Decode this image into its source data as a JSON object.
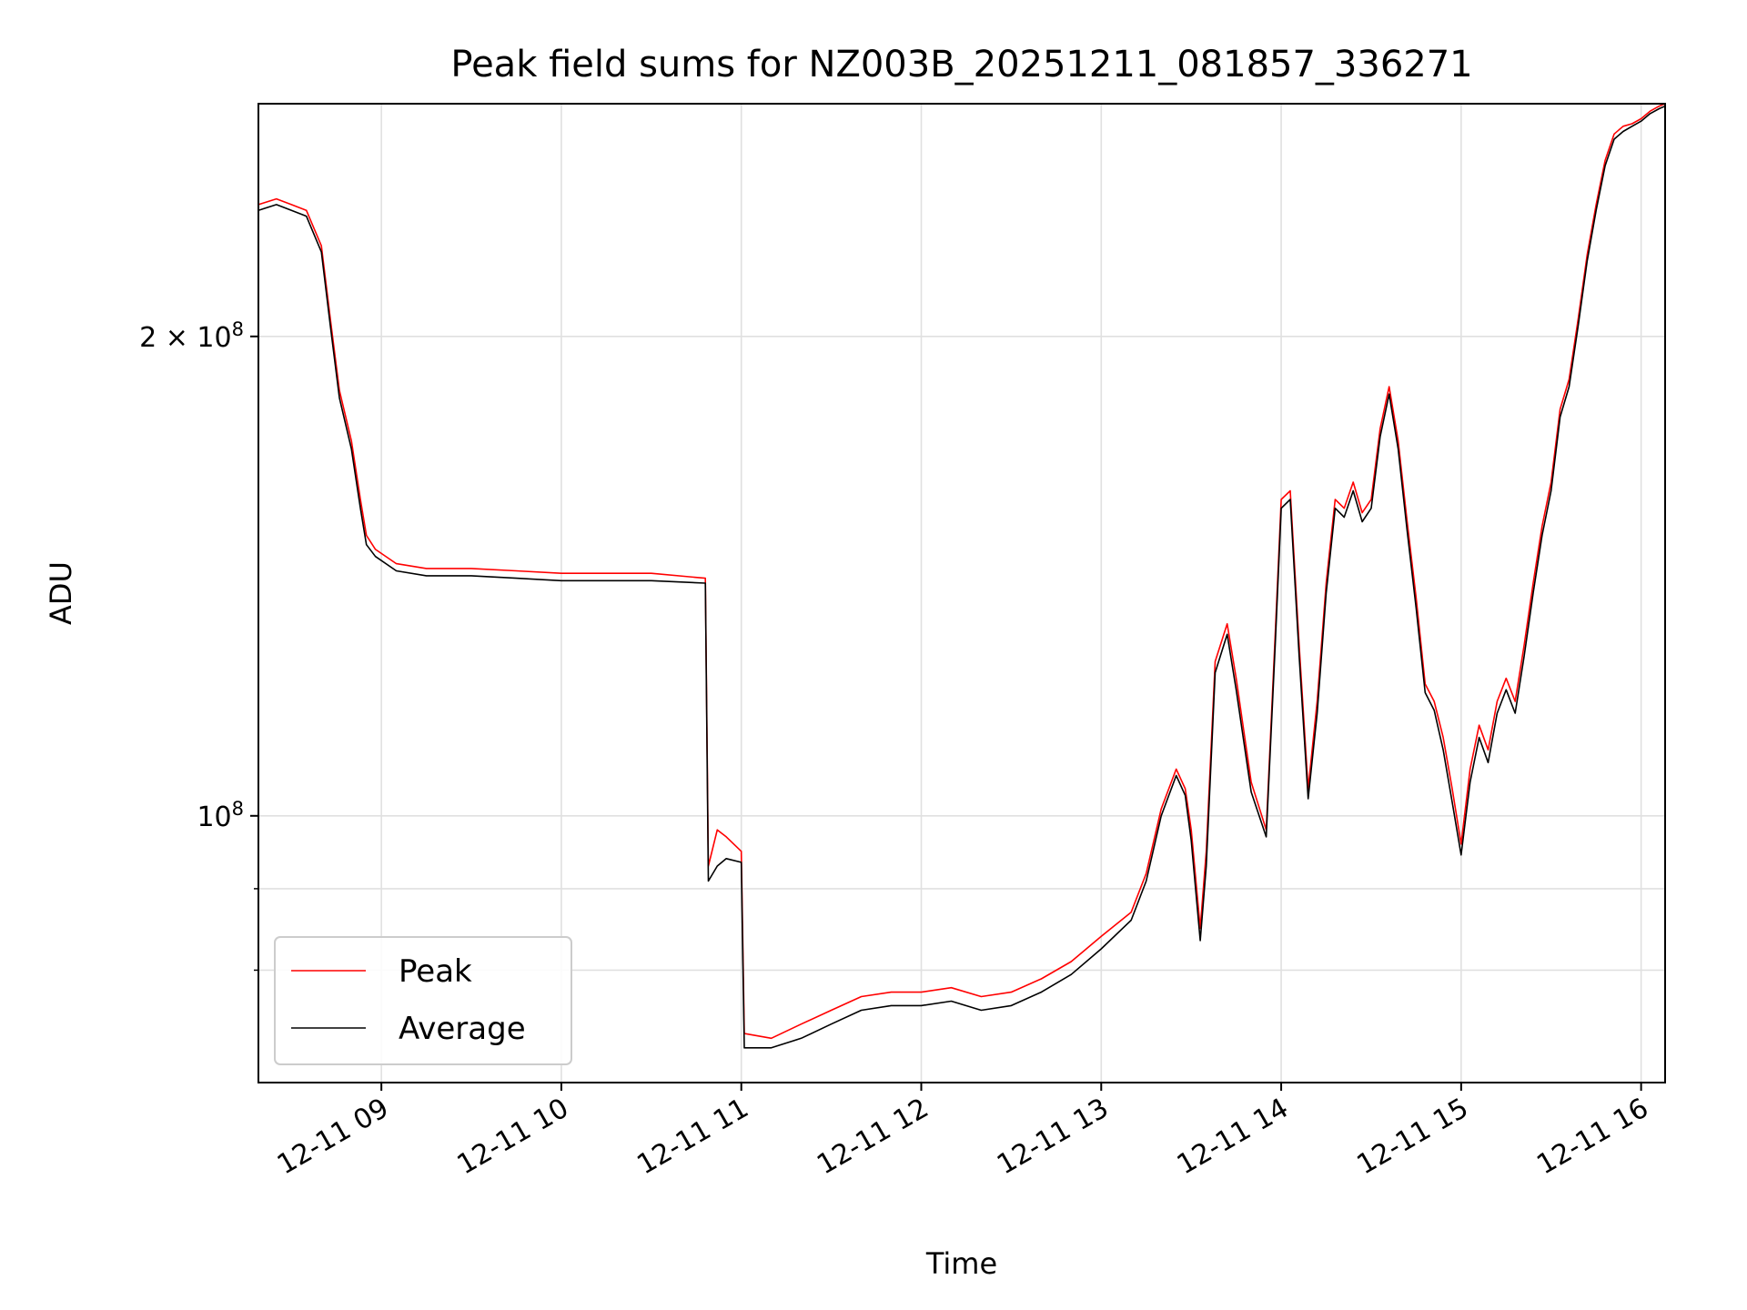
{
  "chart_data": {
    "type": "line",
    "title": "Peak field sums for NZ003B_20251211_081857_336271",
    "xlabel": "Time",
    "ylabel": "ADU",
    "yscale": "log",
    "xlim": [
      "2025-12-11 08:19",
      "2025-12-11 16:08"
    ],
    "ylim": [
      68000000,
      280000000
    ],
    "grid": true,
    "legend_position": "lower-left",
    "x_ticks": [
      "12-11 09",
      "12-11 10",
      "12-11 11",
      "12-11 12",
      "12-11 13",
      "12-11 14",
      "12-11 15",
      "12-11 16"
    ],
    "y_ticks": [
      {
        "value": 200000000,
        "mantissa": "2",
        "times": "×",
        "base": "10",
        "exp": "8"
      },
      {
        "value": 100000000,
        "mantissa": "",
        "times": "",
        "base": "10",
        "exp": "8"
      }
    ],
    "y_minor_ticks": [
      80000000,
      90000000
    ],
    "series": [
      {
        "name": "Peak",
        "color": "#ff0000",
        "x": [
          "2025-12-11 08:19",
          "2025-12-11 08:25",
          "2025-12-11 08:30",
          "2025-12-11 08:35",
          "2025-12-11 08:40",
          "2025-12-11 08:43",
          "2025-12-11 08:46",
          "2025-12-11 08:50",
          "2025-12-11 08:53",
          "2025-12-11 08:55",
          "2025-12-11 08:58",
          "2025-12-11 09:05",
          "2025-12-11 09:15",
          "2025-12-11 09:30",
          "2025-12-11 09:45",
          "2025-12-11 10:00",
          "2025-12-11 10:15",
          "2025-12-11 10:30",
          "2025-12-11 10:48",
          "2025-12-11 10:49",
          "2025-12-11 10:52",
          "2025-12-11 10:55",
          "2025-12-11 11:00",
          "2025-12-11 11:01",
          "2025-12-11 11:10",
          "2025-12-11 11:20",
          "2025-12-11 11:30",
          "2025-12-11 11:40",
          "2025-12-11 11:50",
          "2025-12-11 12:00",
          "2025-12-11 12:10",
          "2025-12-11 12:20",
          "2025-12-11 12:30",
          "2025-12-11 12:40",
          "2025-12-11 12:50",
          "2025-12-11 13:00",
          "2025-12-11 13:10",
          "2025-12-11 13:15",
          "2025-12-11 13:20",
          "2025-12-11 13:25",
          "2025-12-11 13:28",
          "2025-12-11 13:30",
          "2025-12-11 13:33",
          "2025-12-11 13:35",
          "2025-12-11 13:38",
          "2025-12-11 13:42",
          "2025-12-11 13:45",
          "2025-12-11 13:50",
          "2025-12-11 13:55",
          "2025-12-11 13:58",
          "2025-12-11 14:00",
          "2025-12-11 14:03",
          "2025-12-11 14:06",
          "2025-12-11 14:09",
          "2025-12-11 14:12",
          "2025-12-11 14:15",
          "2025-12-11 14:18",
          "2025-12-11 14:21",
          "2025-12-11 14:24",
          "2025-12-11 14:27",
          "2025-12-11 14:30",
          "2025-12-11 14:33",
          "2025-12-11 14:36",
          "2025-12-11 14:39",
          "2025-12-11 14:42",
          "2025-12-11 14:45",
          "2025-12-11 14:48",
          "2025-12-11 14:51",
          "2025-12-11 14:54",
          "2025-12-11 14:57",
          "2025-12-11 15:00",
          "2025-12-11 15:03",
          "2025-12-11 15:06",
          "2025-12-11 15:09",
          "2025-12-11 15:12",
          "2025-12-11 15:15",
          "2025-12-11 15:18",
          "2025-12-11 15:21",
          "2025-12-11 15:24",
          "2025-12-11 15:27",
          "2025-12-11 15:30",
          "2025-12-11 15:33",
          "2025-12-11 15:36",
          "2025-12-11 15:39",
          "2025-12-11 15:42",
          "2025-12-11 15:45",
          "2025-12-11 15:48",
          "2025-12-11 15:51",
          "2025-12-11 15:54",
          "2025-12-11 15:57",
          "2025-12-11 16:00",
          "2025-12-11 16:03",
          "2025-12-11 16:06",
          "2025-12-11 16:08"
        ],
        "values": [
          242000000,
          244000000,
          242000000,
          240000000,
          228000000,
          205000000,
          185000000,
          172000000,
          158000000,
          150000000,
          147000000,
          144000000,
          143000000,
          143000000,
          142500000,
          142000000,
          142000000,
          142000000,
          141000000,
          93000000,
          98000000,
          97000000,
          95000000,
          73000000,
          72500000,
          74000000,
          75500000,
          77000000,
          77500000,
          77500000,
          78000000,
          77000000,
          77500000,
          79000000,
          81000000,
          84000000,
          87000000,
          92000000,
          101000000,
          107000000,
          104000000,
          98000000,
          85000000,
          95000000,
          125000000,
          132000000,
          122000000,
          105000000,
          98000000,
          130000000,
          158000000,
          160000000,
          128000000,
          104000000,
          118000000,
          140000000,
          158000000,
          156000000,
          162000000,
          155000000,
          158000000,
          175000000,
          186000000,
          172000000,
          153000000,
          137000000,
          121000000,
          118000000,
          112000000,
          104000000,
          96000000,
          107000000,
          114000000,
          110000000,
          118000000,
          122000000,
          118000000,
          128000000,
          140000000,
          152000000,
          162000000,
          180000000,
          188000000,
          205000000,
          225000000,
          242000000,
          258000000,
          268000000,
          271000000,
          272000000,
          274000000,
          277000000,
          279000000,
          280000000
        ]
      },
      {
        "name": "Average",
        "color": "#000000",
        "x": [
          "2025-12-11 08:19",
          "2025-12-11 08:25",
          "2025-12-11 08:30",
          "2025-12-11 08:35",
          "2025-12-11 08:40",
          "2025-12-11 08:43",
          "2025-12-11 08:46",
          "2025-12-11 08:50",
          "2025-12-11 08:53",
          "2025-12-11 08:55",
          "2025-12-11 08:58",
          "2025-12-11 09:05",
          "2025-12-11 09:15",
          "2025-12-11 09:30",
          "2025-12-11 09:45",
          "2025-12-11 10:00",
          "2025-12-11 10:15",
          "2025-12-11 10:30",
          "2025-12-11 10:48",
          "2025-12-11 10:49",
          "2025-12-11 10:52",
          "2025-12-11 10:55",
          "2025-12-11 11:00",
          "2025-12-11 11:01",
          "2025-12-11 11:10",
          "2025-12-11 11:20",
          "2025-12-11 11:30",
          "2025-12-11 11:40",
          "2025-12-11 11:50",
          "2025-12-11 12:00",
          "2025-12-11 12:10",
          "2025-12-11 12:20",
          "2025-12-11 12:30",
          "2025-12-11 12:40",
          "2025-12-11 12:50",
          "2025-12-11 13:00",
          "2025-12-11 13:10",
          "2025-12-11 13:15",
          "2025-12-11 13:20",
          "2025-12-11 13:25",
          "2025-12-11 13:28",
          "2025-12-11 13:30",
          "2025-12-11 13:33",
          "2025-12-11 13:35",
          "2025-12-11 13:38",
          "2025-12-11 13:42",
          "2025-12-11 13:45",
          "2025-12-11 13:50",
          "2025-12-11 13:55",
          "2025-12-11 13:58",
          "2025-12-11 14:00",
          "2025-12-11 14:03",
          "2025-12-11 14:06",
          "2025-12-11 14:09",
          "2025-12-11 14:12",
          "2025-12-11 14:15",
          "2025-12-11 14:18",
          "2025-12-11 14:21",
          "2025-12-11 14:24",
          "2025-12-11 14:27",
          "2025-12-11 14:30",
          "2025-12-11 14:33",
          "2025-12-11 14:36",
          "2025-12-11 14:39",
          "2025-12-11 14:42",
          "2025-12-11 14:45",
          "2025-12-11 14:48",
          "2025-12-11 14:51",
          "2025-12-11 14:54",
          "2025-12-11 14:57",
          "2025-12-11 15:00",
          "2025-12-11 15:03",
          "2025-12-11 15:06",
          "2025-12-11 15:09",
          "2025-12-11 15:12",
          "2025-12-11 15:15",
          "2025-12-11 15:18",
          "2025-12-11 15:21",
          "2025-12-11 15:24",
          "2025-12-11 15:27",
          "2025-12-11 15:30",
          "2025-12-11 15:33",
          "2025-12-11 15:36",
          "2025-12-11 15:39",
          "2025-12-11 15:42",
          "2025-12-11 15:45",
          "2025-12-11 15:48",
          "2025-12-11 15:51",
          "2025-12-11 15:54",
          "2025-12-11 15:57",
          "2025-12-11 16:00",
          "2025-12-11 16:03",
          "2025-12-11 16:06",
          "2025-12-11 16:08"
        ],
        "values": [
          240000000,
          242000000,
          240000000,
          238000000,
          226000000,
          203000000,
          183000000,
          170000000,
          156000000,
          148000000,
          145500000,
          142500000,
          141500000,
          141500000,
          141000000,
          140500000,
          140500000,
          140500000,
          140000000,
          91000000,
          93000000,
          94000000,
          93500000,
          71500000,
          71500000,
          72500000,
          74000000,
          75500000,
          76000000,
          76000000,
          76500000,
          75500000,
          76000000,
          77500000,
          79500000,
          82500000,
          86000000,
          91000000,
          100000000,
          106000000,
          103000000,
          96500000,
          83500000,
          93000000,
          123000000,
          130000000,
          120000000,
          103500000,
          97000000,
          128000000,
          156000000,
          158000000,
          126000000,
          102500000,
          116000000,
          138000000,
          156000000,
          154000000,
          160000000,
          153000000,
          156000000,
          173000000,
          184000000,
          170000000,
          151000000,
          135000000,
          119500000,
          116500000,
          110000000,
          102000000,
          94500000,
          105000000,
          112000000,
          108000000,
          116000000,
          120000000,
          116000000,
          126000000,
          138000000,
          150000000,
          160000000,
          178000000,
          186000000,
          203000000,
          223000000,
          240000000,
          256000000,
          266000000,
          269000000,
          271000000,
          273000000,
          276000000,
          278000000,
          279000000
        ]
      }
    ]
  }
}
